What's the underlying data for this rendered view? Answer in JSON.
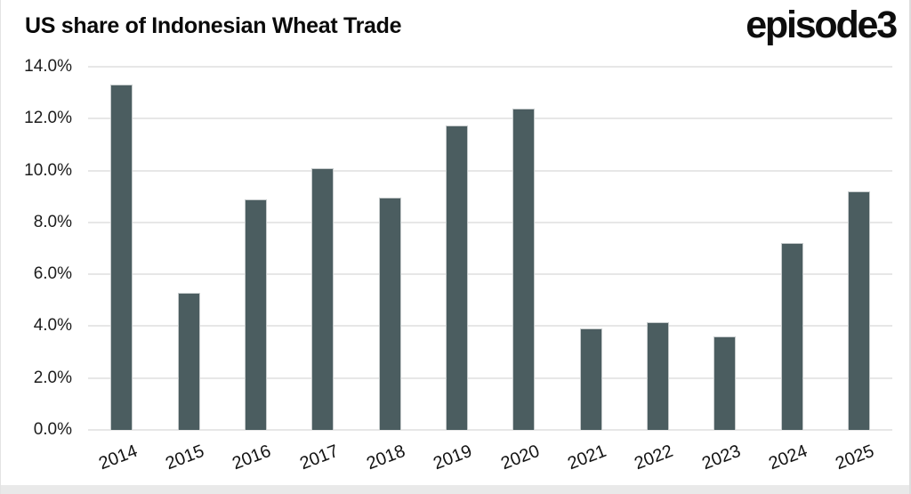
{
  "header": {
    "title": "US share of Indonesian Wheat Trade",
    "logo": "episode3"
  },
  "chart_data": {
    "type": "bar",
    "title": "US share of Indonesian Wheat Trade",
    "categories": [
      "2014",
      "2015",
      "2016",
      "2017",
      "2018",
      "2019",
      "2020",
      "2021",
      "2022",
      "2023",
      "2024",
      "2025"
    ],
    "values": [
      13.3,
      5.3,
      8.9,
      10.1,
      8.95,
      11.75,
      12.4,
      3.9,
      4.15,
      3.6,
      7.2,
      9.2
    ],
    "value_unit": "%",
    "xlabel": "",
    "ylabel": "",
    "ylim": [
      0,
      14
    ],
    "yticks": [
      0,
      2,
      4,
      6,
      8,
      10,
      12,
      14
    ],
    "ytick_labels": [
      "0.0%",
      "2.0%",
      "4.0%",
      "6.0%",
      "8.0%",
      "10.0%",
      "12.0%",
      "14.0%"
    ],
    "grid": true,
    "legend_position": "none",
    "colors": {
      "bar": "#4b5d60",
      "bar_border": "#c6cbcc",
      "gridline": "#e7e7e7",
      "title_text": "#0a0a0a",
      "tick_text": "#1c1c1c",
      "background": "#ffffff",
      "bottom_strip": "#e9e9e9"
    }
  }
}
